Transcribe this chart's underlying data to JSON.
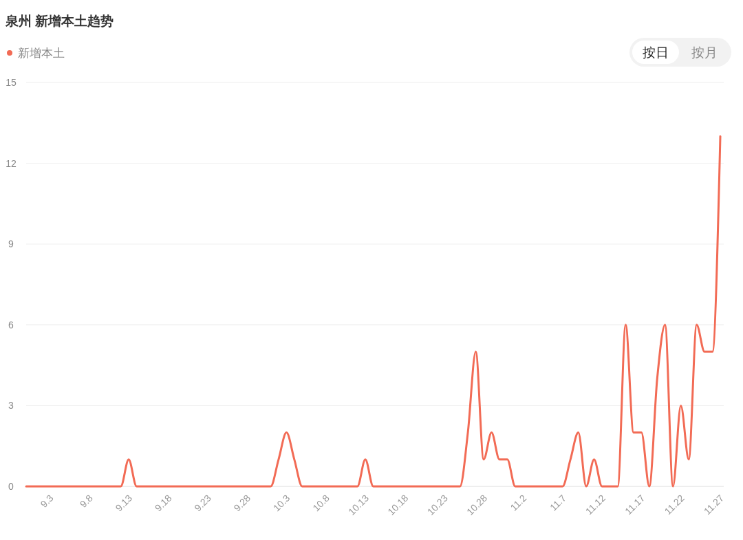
{
  "chart_data": {
    "type": "line",
    "title": "泉州 新增本土趋势",
    "categories": [
      null,
      null,
      null,
      "9.3",
      null,
      null,
      null,
      null,
      "9.8",
      null,
      null,
      null,
      null,
      "9.13",
      null,
      null,
      null,
      null,
      "9.18",
      null,
      null,
      null,
      null,
      "9.23",
      null,
      null,
      null,
      null,
      "9.28",
      null,
      null,
      null,
      null,
      "10.3",
      null,
      null,
      null,
      null,
      "10.8",
      null,
      null,
      null,
      null,
      "10.13",
      null,
      null,
      null,
      null,
      "10.18",
      null,
      null,
      null,
      null,
      "10.23",
      null,
      null,
      null,
      null,
      "10.28",
      null,
      null,
      null,
      null,
      "11.2",
      null,
      null,
      null,
      null,
      "11.7",
      null,
      null,
      null,
      null,
      "11.12",
      null,
      null,
      null,
      null,
      "11.17",
      null,
      null,
      null,
      null,
      "11.22",
      null,
      null,
      null,
      null,
      "11.27"
    ],
    "series": [
      {
        "name": "新增本土",
        "color": "#f26b55",
        "values": [
          0,
          0,
          0,
          0,
          0,
          0,
          0,
          0,
          0,
          0,
          0,
          0,
          0,
          1,
          0,
          0,
          0,
          0,
          0,
          0,
          0,
          0,
          0,
          0,
          0,
          0,
          0,
          0,
          0,
          0,
          0,
          0,
          1,
          2,
          1,
          0,
          0,
          0,
          0,
          0,
          0,
          0,
          0,
          1,
          0,
          0,
          0,
          0,
          0,
          0,
          0,
          0,
          0,
          0,
          0,
          0,
          2,
          5,
          1,
          2,
          1,
          1,
          0,
          0,
          0,
          0,
          0,
          0,
          0,
          1,
          2,
          0,
          1,
          0,
          0,
          0,
          6,
          2,
          2,
          0,
          4,
          6,
          0,
          3,
          1,
          6,
          5,
          5,
          13
        ]
      }
    ],
    "ylim": [
      0,
      15
    ],
    "yticks": [
      0,
      3,
      6,
      9,
      12,
      15
    ],
    "grid": "y",
    "legend": "top left",
    "marker": "none",
    "annotations": [
      "按日",
      "按月"
    ]
  }
}
